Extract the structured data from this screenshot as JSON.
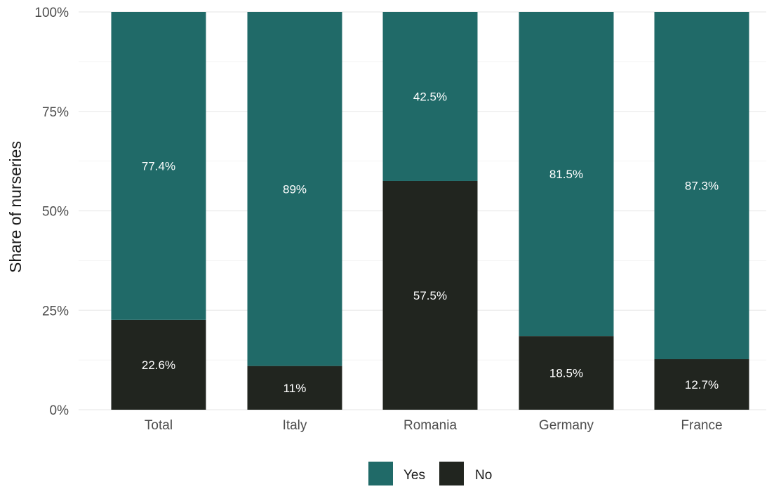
{
  "chart_data": {
    "type": "bar",
    "stacked": true,
    "percent": true,
    "categories": [
      "Total",
      "Italy",
      "Romania",
      "Germany",
      "France"
    ],
    "series": [
      {
        "name": "No",
        "color": "#21251f",
        "values": [
          22.6,
          11,
          57.5,
          18.5,
          12.7
        ],
        "labels": [
          "22.6%",
          "11%",
          "57.5%",
          "18.5%",
          "12.7%"
        ]
      },
      {
        "name": "Yes",
        "color": "#206a68",
        "values": [
          77.4,
          89,
          42.5,
          81.5,
          87.3
        ],
        "labels": [
          "77.4%",
          "89%",
          "42.5%",
          "81.5%",
          "87.3%"
        ]
      }
    ],
    "title": "",
    "xlabel": "",
    "ylabel": "Share of nurseries",
    "ylim": [
      0,
      100
    ],
    "yticks": [
      0,
      25,
      50,
      75,
      100
    ],
    "ytick_labels": [
      "0%",
      "25%",
      "50%",
      "75%",
      "100%"
    ],
    "grid": true,
    "legend": {
      "position": "bottom",
      "entries": [
        "Yes",
        "No"
      ]
    }
  }
}
